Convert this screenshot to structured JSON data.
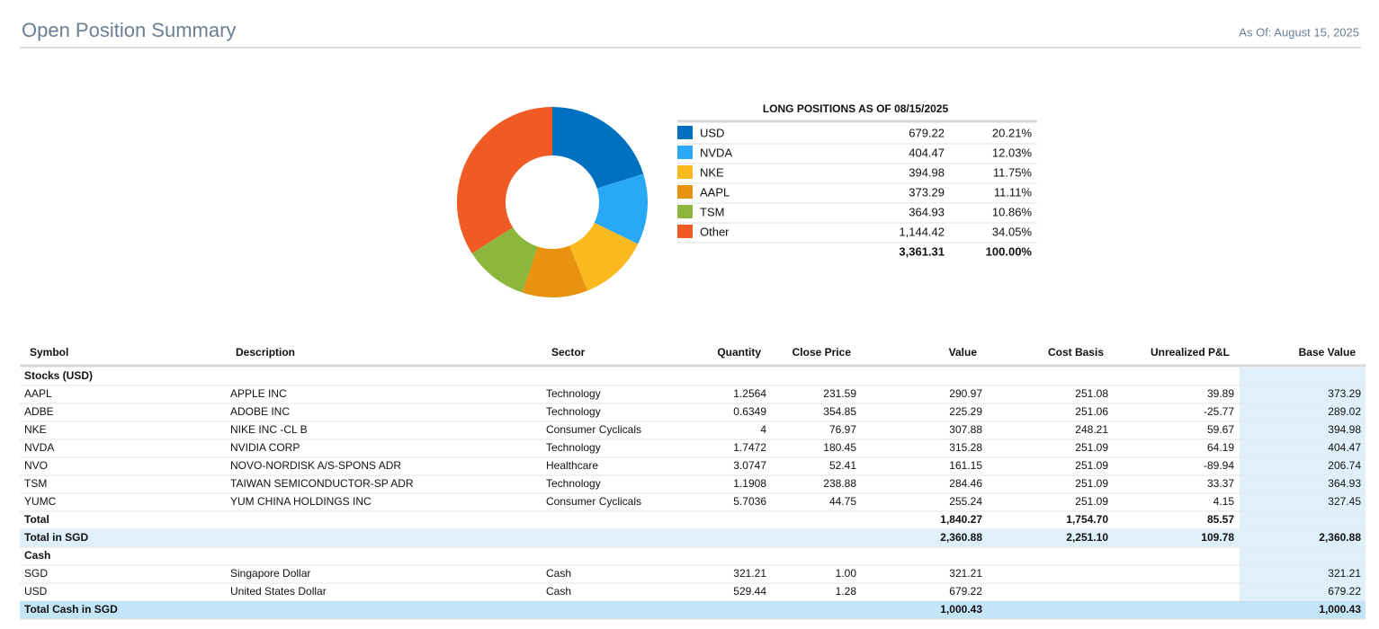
{
  "header": {
    "title": "Open Position Summary",
    "as_of": "As Of: August 15, 2025"
  },
  "chart_data": {
    "type": "pie",
    "donut": true,
    "title": "LONG POSITIONS AS OF 08/15/2025",
    "categories": [
      "USD",
      "NVDA",
      "NKE",
      "AAPL",
      "TSM",
      "Other"
    ],
    "values": [
      679.22,
      404.47,
      394.98,
      373.29,
      364.93,
      1144.42
    ],
    "value_labels": [
      "679.22",
      "404.47",
      "394.98",
      "373.29",
      "364.93",
      "1,144.42"
    ],
    "percent_labels": [
      "20.21%",
      "12.03%",
      "11.75%",
      "11.11%",
      "10.86%",
      "34.05%"
    ],
    "colors": [
      "#0070c0",
      "#29a8f5",
      "#fbb920",
      "#e8920f",
      "#8db63c",
      "#f05a23"
    ],
    "total_label": "3,361.31",
    "total_percent": "100.00%"
  },
  "table": {
    "columns": [
      "Symbol",
      "Description",
      "Sector",
      "Quantity",
      "Close Price",
      "Value",
      "Cost Basis",
      "Unrealized P&L",
      "Base Value"
    ],
    "sections": [
      {
        "title": "Stocks (USD)",
        "rows": [
          [
            "AAPL",
            "APPLE INC",
            "Technology",
            "1.2564",
            "231.59",
            "290.97",
            "251.08",
            "39.89",
            "373.29"
          ],
          [
            "ADBE",
            "ADOBE INC",
            "Technology",
            "0.6349",
            "354.85",
            "225.29",
            "251.06",
            "-25.77",
            "289.02"
          ],
          [
            "NKE",
            "NIKE INC -CL B",
            "Consumer Cyclicals",
            "4",
            "76.97",
            "307.88",
            "248.21",
            "59.67",
            "394.98"
          ],
          [
            "NVDA",
            "NVIDIA CORP",
            "Technology",
            "1.7472",
            "180.45",
            "315.28",
            "251.09",
            "64.19",
            "404.47"
          ],
          [
            "NVO",
            "NOVO-NORDISK A/S-SPONS ADR",
            "Healthcare",
            "3.0747",
            "52.41",
            "161.15",
            "251.09",
            "-89.94",
            "206.74"
          ],
          [
            "TSM",
            "TAIWAN SEMICONDUCTOR-SP ADR",
            "Technology",
            "1.1908",
            "238.88",
            "284.46",
            "251.09",
            "33.37",
            "364.93"
          ],
          [
            "YUMC",
            "YUM CHINA HOLDINGS INC",
            "Consumer Cyclicals",
            "5.7036",
            "44.75",
            "255.24",
            "251.09",
            "4.15",
            "327.45"
          ]
        ],
        "total": {
          "label": "Total",
          "value": "1,840.27",
          "cost_basis": "1,754.70",
          "unrealized_pnl": "85.57"
        },
        "base_total": {
          "label": "Total in SGD",
          "value": "2,360.88",
          "cost_basis": "2,251.10",
          "unrealized_pnl": "109.78",
          "base_value": "2,360.88"
        }
      },
      {
        "title": "Cash",
        "rows": [
          [
            "SGD",
            "Singapore Dollar",
            "Cash",
            "321.21",
            "1.00",
            "321.21",
            null,
            null,
            "321.21"
          ],
          [
            "USD",
            "United States Dollar",
            "Cash",
            "529.44",
            "1.28",
            "679.22",
            null,
            null,
            "679.22"
          ]
        ],
        "base_total": {
          "label": "Total Cash in SGD",
          "value": "1,000.43",
          "base_value": "1,000.43"
        }
      }
    ]
  }
}
